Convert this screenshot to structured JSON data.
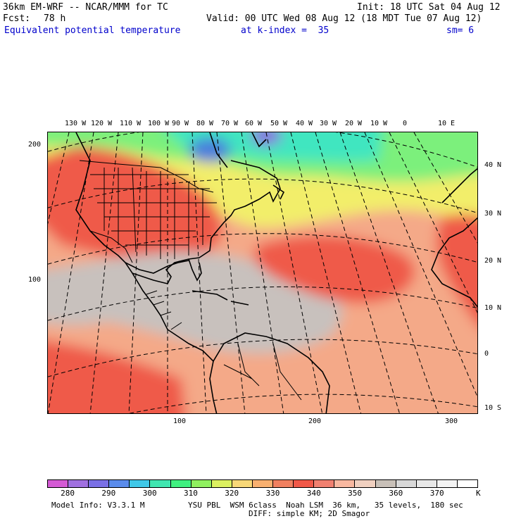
{
  "header": {
    "model_title": "36km EM-WRF -- NCAR/MMM for TC",
    "init": "Init: 18 UTC Sat 04 Aug 12",
    "forecast_label": "Fcst:",
    "forecast_hours": "78 h",
    "valid": "Valid: 00 UTC Wed 08 Aug 12 (18 MDT Tue 07 Aug 12)",
    "field_name": "Equivalent potential temperature",
    "level": "at k-index =  35",
    "smoothing": "sm= 6"
  },
  "map": {
    "projection_labels_top": [
      "130 W",
      "120 W",
      "110 W",
      "100 W",
      "90 W",
      "80 W",
      "70 W",
      "60 W",
      "50 W",
      "40 W",
      "30 W",
      "20 W",
      "10 W",
      "0",
      "10 E"
    ],
    "lat_labels_right": [
      "40 N",
      "30 N",
      "20 N",
      "10 N",
      "0",
      "10 S"
    ],
    "grid_labels_left": [
      "200",
      "100"
    ],
    "grid_labels_bottom": [
      "100",
      "200",
      "300"
    ],
    "colors": {
      "ocean_warm": "#f4a988",
      "land_hot": "#ef5a48",
      "tropics_grey": "#c8c1bd",
      "mid_yellow": "#f2ee6a",
      "green": "#7cf07c",
      "cyan": "#40e6c0",
      "cold_blue": "#4a7fdc",
      "coldest": "#8a6ae0",
      "outline": "#000000"
    }
  },
  "colorbar": {
    "colors": [
      "#d45ad4",
      "#a070e0",
      "#7a70e6",
      "#5a8cec",
      "#40c8e8",
      "#40e6b0",
      "#40f080",
      "#90f060",
      "#dcf060",
      "#f8d878",
      "#f8b070",
      "#f08060",
      "#f05848",
      "#f08070",
      "#f8b8a0",
      "#f0d0c0",
      "#c8c0b8",
      "#d8d8d8",
      "#e8e8e8",
      "#f4f4f4",
      "#ffffff"
    ],
    "labels": [
      "280",
      "290",
      "300",
      "310",
      "320",
      "330",
      "340",
      "350",
      "360",
      "370"
    ],
    "unit": "K"
  },
  "footer": {
    "model_info": "Model Info: V3.3.1 M",
    "physics": "YSU PBL  WSM 6class  Noah LSM  36 km,   35 levels,  180 sec",
    "diffusion": "DIFF: simple KM; 2D Smagor"
  }
}
